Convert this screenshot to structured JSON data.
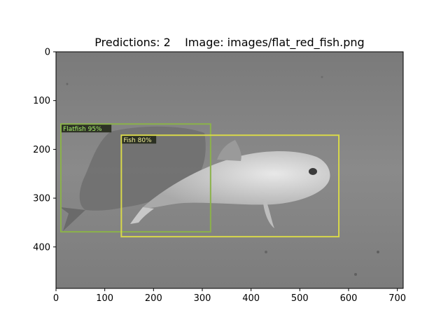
{
  "figure": {
    "title": "Predictions: 2    Image: images/flat_red_fish.png",
    "x_axis": {
      "range": [
        0,
        712
      ],
      "ticks": [
        0,
        100,
        200,
        300,
        400,
        500,
        600,
        700
      ]
    },
    "y_axis": {
      "range": [
        0,
        485
      ],
      "inverted": true,
      "ticks": [
        0,
        100,
        200,
        300,
        400
      ]
    }
  },
  "image": {
    "name": "images/flat_red_fish.png",
    "scene": "grayscale underwater seafloor photo with a flatfish lying on sand and a large fish beside it"
  },
  "detections": [
    {
      "label": "Flatfish 95%",
      "class": "Flatfish",
      "score": 0.95,
      "x1": 10,
      "y1": 148,
      "x2": 317,
      "y2": 369,
      "color": "#8bb24a",
      "label_text_color": "#a6f06a"
    },
    {
      "label": "Fish 80%",
      "class": "Fish",
      "score": 0.8,
      "x1": 134,
      "y1": 171,
      "x2": 580,
      "y2": 379,
      "color": "#d8d84a",
      "label_text_color": "#f4f09a"
    }
  ]
}
